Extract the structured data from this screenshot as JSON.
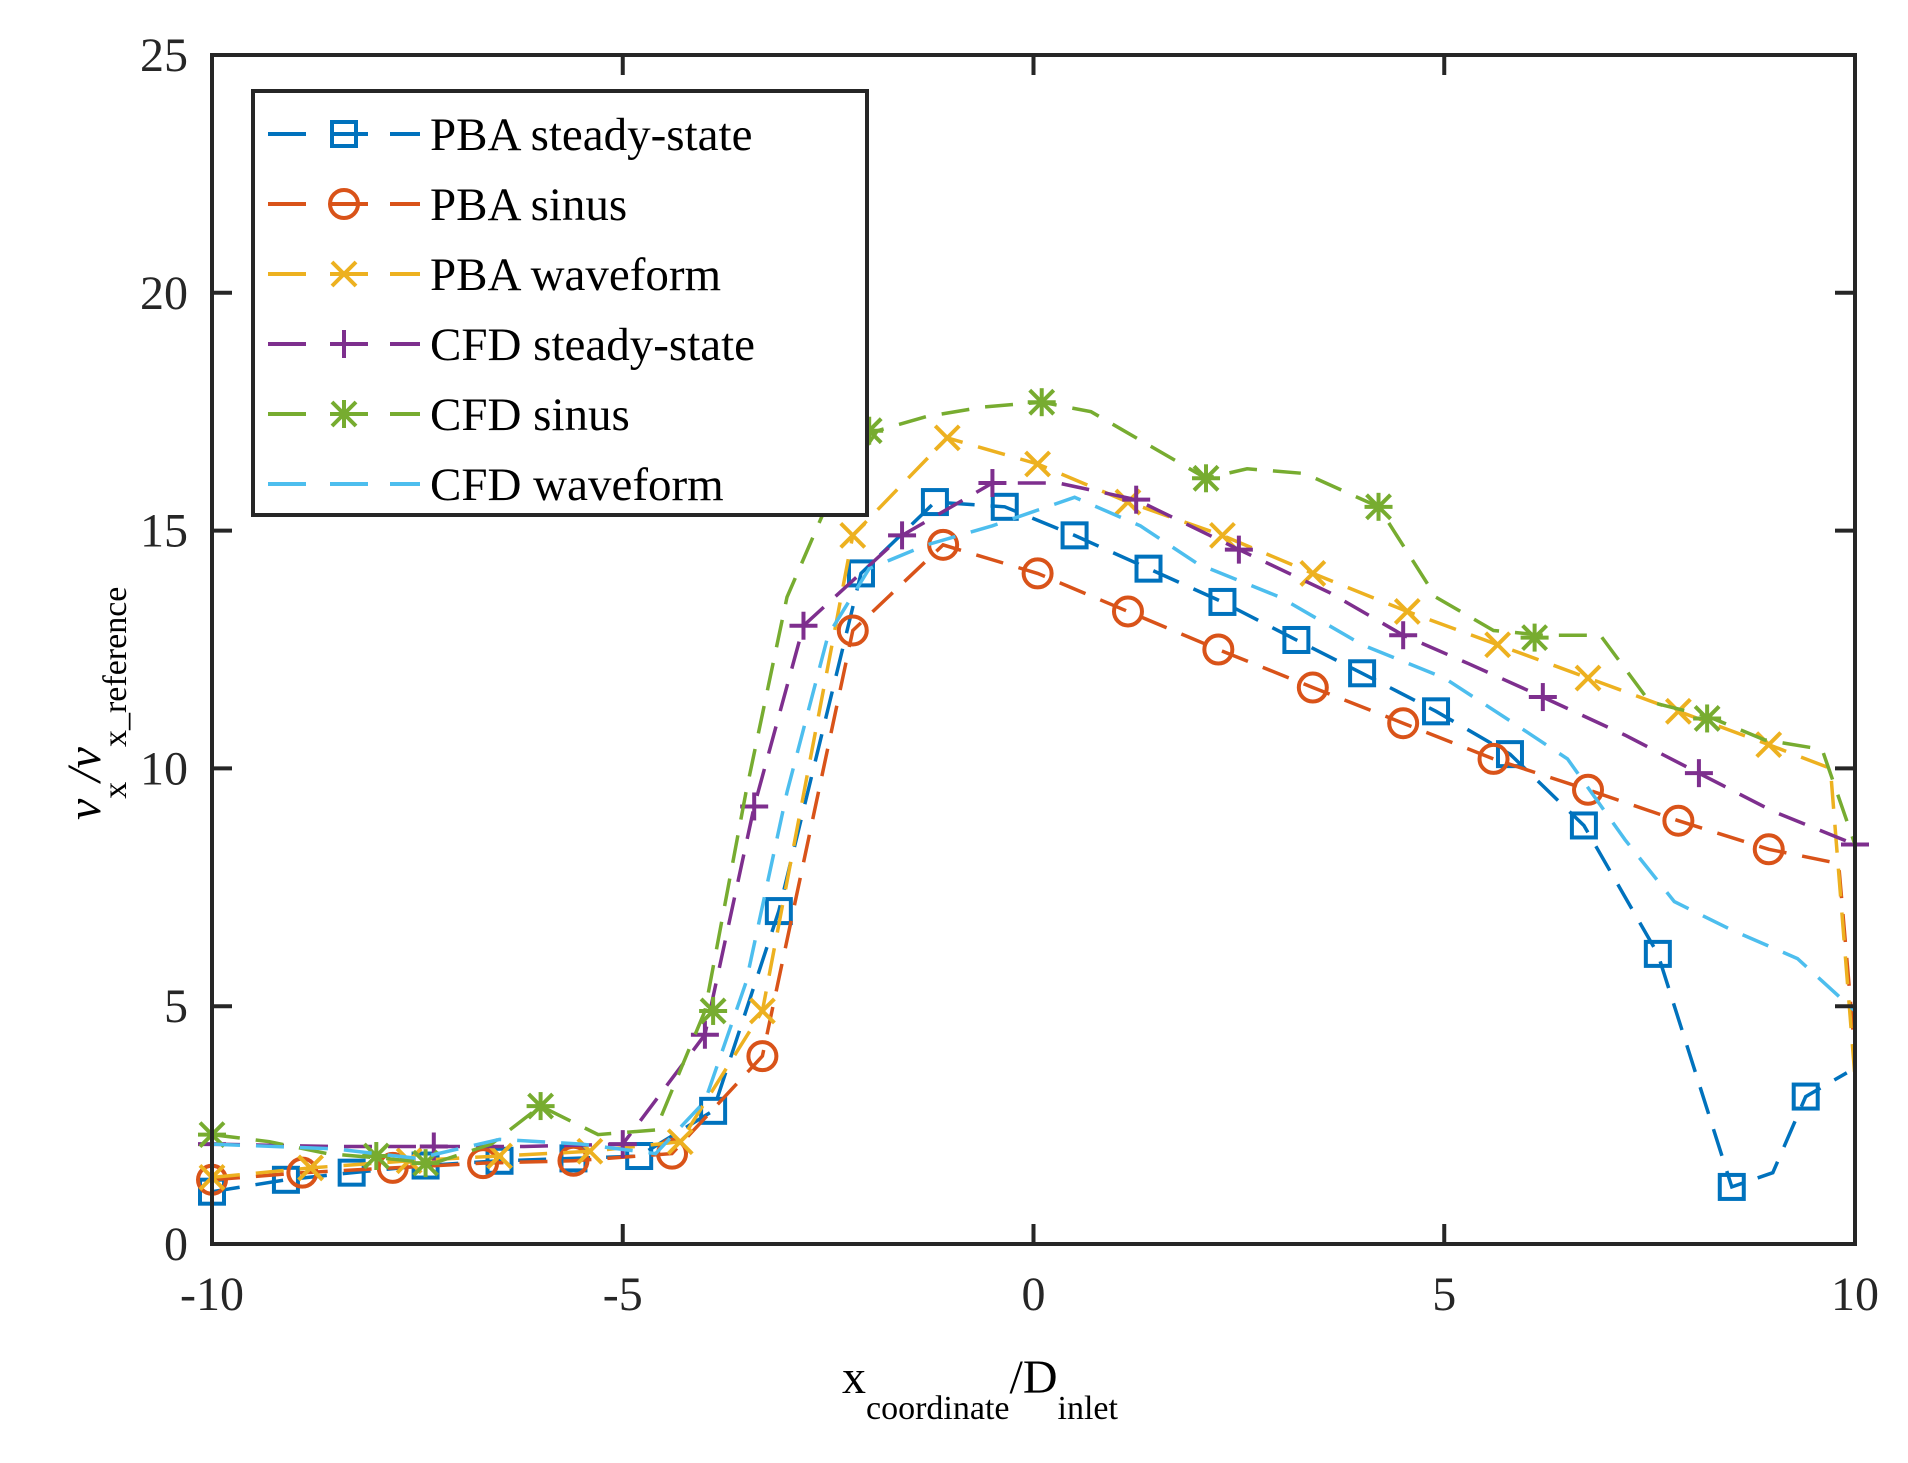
{
  "chart_data": {
    "type": "line",
    "title": "",
    "xlabel": {
      "main": "x",
      "sub": "coordinate",
      "sep": "/D",
      "sub2": "inlet"
    },
    "ylabel": {
      "main": "v",
      "sub": "x",
      "sep": "/v",
      "sub2": "x_reference"
    },
    "xlim": [
      -10,
      10
    ],
    "ylim": [
      0,
      25
    ],
    "xticks": [
      -10,
      -5,
      0,
      5,
      10
    ],
    "xtick_labels": [
      "-10",
      "-5",
      "0",
      "5",
      "10"
    ],
    "yticks": [
      0,
      5,
      10,
      15,
      20,
      25
    ],
    "ytick_labels": [
      "0",
      "5",
      "10",
      "15",
      "20",
      "25"
    ],
    "grid": false,
    "legend_position": "top-left",
    "series": [
      {
        "name": "PBA steady-state",
        "color": "#0072BD",
        "marker": "square",
        "dash": "dashed",
        "x": [
          -10,
          -9.1,
          -8.3,
          -7.4,
          -6.5,
          -5.6,
          -4.8,
          -3.9,
          -3.1,
          -2.1,
          -1.2,
          -0.35,
          0.5,
          1.4,
          2.3,
          3.2,
          4.0,
          4.9,
          5.8,
          6.7,
          7.6,
          8.5,
          9.0,
          9.4,
          9.9
        ],
        "y": [
          1.1,
          1.35,
          1.5,
          1.65,
          1.75,
          1.8,
          1.85,
          2.8,
          7.0,
          14.1,
          15.6,
          15.5,
          14.9,
          14.2,
          13.5,
          12.7,
          12.0,
          11.2,
          10.3,
          8.8,
          6.1,
          1.2,
          1.5,
          3.1,
          3.6
        ],
        "marker_x": [
          -10,
          -9.1,
          -8.3,
          -7.4,
          -6.5,
          -5.6,
          -4.8,
          -3.9,
          -3.1,
          -2.1,
          -1.2,
          -0.35,
          0.5,
          1.4,
          2.3,
          3.2,
          4.0,
          4.9,
          5.8,
          6.7,
          7.6,
          8.5,
          9.4
        ],
        "marker_y": [
          1.1,
          1.35,
          1.5,
          1.65,
          1.75,
          1.8,
          1.85,
          2.8,
          7.0,
          14.1,
          15.6,
          15.5,
          14.9,
          14.2,
          13.5,
          12.7,
          12.0,
          11.2,
          10.3,
          8.8,
          6.1,
          1.2,
          3.1
        ]
      },
      {
        "name": "PBA sinus",
        "color": "#D95319",
        "marker": "circle",
        "dash": "dashed",
        "x": [
          -10,
          -8.9,
          -7.8,
          -6.7,
          -5.6,
          -4.4,
          -3.3,
          -2.2,
          -1.1,
          0.05,
          1.15,
          2.25,
          3.4,
          4.5,
          5.6,
          6.75,
          7.85,
          8.95,
          9.8,
          10
        ],
        "y": [
          1.35,
          1.5,
          1.6,
          1.7,
          1.75,
          1.9,
          3.95,
          12.9,
          14.7,
          14.1,
          13.3,
          12.5,
          11.7,
          10.95,
          10.2,
          9.55,
          8.9,
          8.3,
          8.0,
          4.0
        ],
        "marker_x": [
          -10,
          -8.9,
          -7.8,
          -6.7,
          -5.6,
          -4.4,
          -3.3,
          -2.2,
          -1.1,
          0.05,
          1.15,
          2.25,
          3.4,
          4.5,
          5.6,
          6.75,
          7.85,
          8.95
        ],
        "marker_y": [
          1.35,
          1.5,
          1.6,
          1.7,
          1.75,
          1.9,
          3.95,
          12.9,
          14.7,
          14.1,
          13.3,
          12.5,
          11.7,
          10.95,
          10.2,
          9.55,
          8.9,
          8.3
        ]
      },
      {
        "name": "PBA waveform",
        "color": "#EDB120",
        "marker": "x",
        "dash": "dashed",
        "x": [
          -10,
          -8.8,
          -7.6,
          -6.5,
          -5.4,
          -4.3,
          -3.3,
          -2.2,
          -1.05,
          0.05,
          1.15,
          2.3,
          3.4,
          4.55,
          5.65,
          6.75,
          7.85,
          8.95,
          9.7,
          10
        ],
        "y": [
          1.4,
          1.6,
          1.75,
          1.85,
          1.95,
          2.15,
          4.9,
          14.9,
          16.95,
          16.4,
          15.6,
          14.9,
          14.1,
          13.3,
          12.6,
          11.9,
          11.2,
          10.5,
          10.0,
          3.5
        ],
        "marker_x": [
          -10,
          -8.8,
          -7.6,
          -6.5,
          -5.4,
          -4.3,
          -3.3,
          -2.2,
          -1.05,
          0.05,
          1.15,
          2.3,
          3.4,
          4.55,
          5.65,
          6.75,
          7.85,
          8.95
        ],
        "marker_y": [
          1.4,
          1.6,
          1.75,
          1.85,
          1.95,
          2.15,
          4.9,
          14.9,
          16.95,
          16.4,
          15.6,
          14.9,
          14.1,
          13.3,
          12.6,
          11.9,
          11.2,
          10.5
        ]
      },
      {
        "name": "CFD steady-state",
        "color": "#7E2F8E",
        "marker": "plus",
        "dash": "dashed",
        "x": [
          -10,
          -8.5,
          -7.3,
          -6.2,
          -5.0,
          -4.0,
          -3.4,
          -2.8,
          -1.6,
          -0.5,
          0.3,
          1.25,
          2.5,
          3.6,
          4.5,
          5.3,
          6.2,
          7.2,
          8.1,
          9.0,
          10
        ],
        "y": [
          2.1,
          2.05,
          2.05,
          2.05,
          2.1,
          4.4,
          9.2,
          13.0,
          14.9,
          16.0,
          16.0,
          15.65,
          14.6,
          13.7,
          12.8,
          12.2,
          11.5,
          10.7,
          9.9,
          9.1,
          8.4
        ],
        "marker_x": [
          -10,
          -7.3,
          -5.0,
          -4.0,
          -3.4,
          -2.8,
          -1.6,
          -0.5,
          1.25,
          2.5,
          4.5,
          6.2,
          8.1,
          10
        ],
        "marker_y": [
          2.1,
          2.05,
          2.1,
          4.4,
          9.2,
          13.0,
          14.9,
          16.0,
          15.65,
          14.6,
          12.8,
          11.5,
          9.9,
          8.4
        ]
      },
      {
        "name": "CFD sinus",
        "color": "#77AC30",
        "marker": "asterisk",
        "dash": "dashed",
        "x": [
          -10,
          -9.3,
          -8.6,
          -7.9,
          -7.3,
          -6.6,
          -6.0,
          -5.3,
          -4.6,
          -4.0,
          -3.5,
          -3.0,
          -2.5,
          -1.9,
          -1.3,
          -0.6,
          0.1,
          0.7,
          1.3,
          2.1,
          2.6,
          3.3,
          4.2,
          4.9,
          5.6,
          6.2,
          6.9,
          7.5,
          8.2,
          8.9,
          9.6,
          10
        ],
        "y": [
          2.3,
          2.15,
          1.9,
          1.8,
          1.7,
          2.1,
          2.9,
          2.3,
          2.4,
          4.9,
          9.5,
          13.6,
          15.6,
          17.1,
          17.4,
          17.6,
          17.7,
          17.5,
          16.9,
          16.1,
          16.3,
          16.2,
          15.5,
          13.6,
          12.9,
          12.8,
          12.8,
          11.4,
          11.1,
          10.6,
          10.4,
          8.4
        ],
        "marker_x": [
          -10,
          -8.0,
          -7.4,
          -6.0,
          -3.9,
          -2.0,
          0.1,
          2.1,
          4.2,
          6.1,
          8.2
        ],
        "marker_y": [
          2.3,
          1.85,
          1.7,
          2.9,
          4.9,
          17.1,
          17.7,
          16.1,
          15.5,
          12.75,
          11.05
        ]
      },
      {
        "name": "CFD waveform",
        "color": "#4DBEEE",
        "marker": "none",
        "dash": "dashed",
        "x": [
          -10,
          -8.5,
          -7.5,
          -6.5,
          -5.5,
          -4.6,
          -4.0,
          -3.5,
          -3.0,
          -2.5,
          -2.0,
          -1.3,
          -0.5,
          0.5,
          1.3,
          2.0,
          3.0,
          4.0,
          5.0,
          5.8,
          6.5,
          7.2,
          7.8,
          8.5,
          9.3,
          10
        ],
        "y": [
          2.1,
          2.0,
          1.8,
          2.2,
          2.1,
          1.9,
          3.0,
          5.5,
          9.5,
          12.8,
          14.2,
          14.7,
          15.1,
          15.7,
          15.1,
          14.3,
          13.6,
          12.6,
          11.9,
          11.0,
          10.2,
          8.5,
          7.2,
          6.6,
          6.0,
          4.9
        ],
        "marker_x": [],
        "marker_y": []
      }
    ]
  }
}
